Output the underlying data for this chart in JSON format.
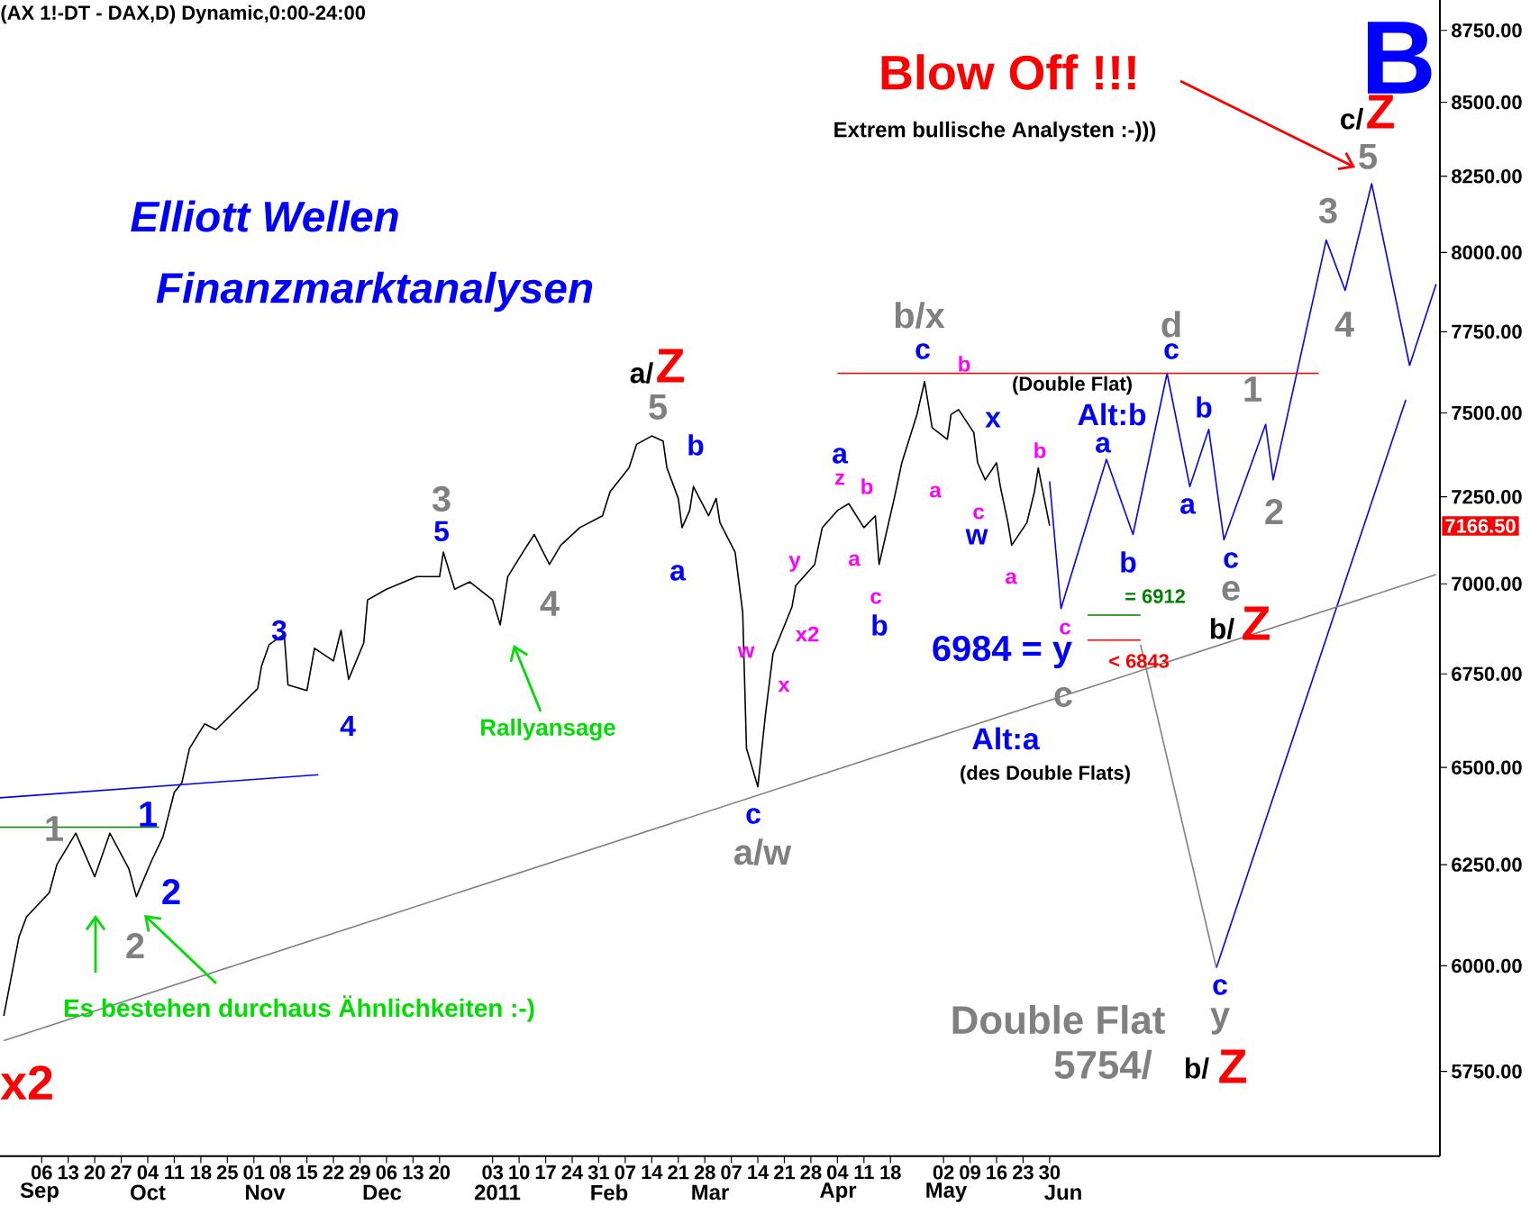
{
  "chart_data": {
    "type": "line",
    "title": "(AX 1!-DT - DAX,D) Dynamic,0:00-24:00",
    "log": true,
    "grid": false,
    "xlim": [
      "2010-08-26",
      "2011-09-10"
    ],
    "ylim": [
      5557,
      8859
    ],
    "xticks": [
      {
        "value": "2010-09-06",
        "label": "06"
      },
      {
        "value": "2010-09-13",
        "label": "13"
      },
      {
        "value": "2010-09-20",
        "label": "20"
      },
      {
        "value": "2010-09-27",
        "label": "27"
      },
      {
        "value": "2010-10-04",
        "label": "04"
      },
      {
        "value": "2010-10-11",
        "label": "11"
      },
      {
        "value": "2010-10-18",
        "label": "18"
      },
      {
        "value": "2010-10-25",
        "label": "25"
      },
      {
        "value": "2010-11-01",
        "label": "01"
      },
      {
        "value": "2010-11-08",
        "label": "08"
      },
      {
        "value": "2010-11-15",
        "label": "15"
      },
      {
        "value": "2010-11-22",
        "label": "22"
      },
      {
        "value": "2010-11-29",
        "label": "29"
      },
      {
        "value": "2010-12-06",
        "label": "06"
      },
      {
        "value": "2010-12-13",
        "label": "13"
      },
      {
        "value": "2010-12-20",
        "label": "20"
      },
      {
        "value": "2011-01-03",
        "label": "03"
      },
      {
        "value": "2011-01-10",
        "label": "10"
      },
      {
        "value": "2011-01-17",
        "label": "17"
      },
      {
        "value": "2011-01-24",
        "label": "24"
      },
      {
        "value": "2011-01-31",
        "label": "31"
      },
      {
        "value": "2011-02-07",
        "label": "07"
      },
      {
        "value": "2011-02-14",
        "label": "14"
      },
      {
        "value": "2011-02-21",
        "label": "21"
      },
      {
        "value": "2011-02-28",
        "label": "28"
      },
      {
        "value": "2011-03-07",
        "label": "07"
      },
      {
        "value": "2011-03-14",
        "label": "14"
      },
      {
        "value": "2011-03-21",
        "label": "21"
      },
      {
        "value": "2011-03-28",
        "label": "28"
      },
      {
        "value": "2011-04-04",
        "label": "04"
      },
      {
        "value": "2011-04-11",
        "label": "11"
      },
      {
        "value": "2011-04-18",
        "label": "18"
      },
      {
        "value": "2011-05-02",
        "label": "02"
      },
      {
        "value": "2011-05-09",
        "label": "09"
      },
      {
        "value": "2011-05-16",
        "label": "16"
      },
      {
        "value": "2011-05-23",
        "label": "23"
      },
      {
        "value": "2011-05-30",
        "label": "30"
      }
    ],
    "yticks": [
      {
        "value": 5750,
        "label": "5750.00"
      },
      {
        "value": 6000,
        "label": "6000.00"
      },
      {
        "value": 6250,
        "label": "6250.00"
      },
      {
        "value": 6500,
        "label": "6500.00"
      },
      {
        "value": 6750,
        "label": "6750.00"
      },
      {
        "value": 7000,
        "label": "7000.00"
      },
      {
        "value": 7250,
        "label": "7250.00"
      },
      {
        "value": 7500,
        "label": "7500.00"
      },
      {
        "value": 7750,
        "label": "7750.00"
      },
      {
        "value": 8000,
        "label": "8000.00"
      },
      {
        "value": 8250,
        "label": "8250.00"
      },
      {
        "value": 8500,
        "label": "8500.00"
      },
      {
        "value": 8750,
        "label": "8750.00"
      }
    ],
    "series": [
      {
        "color": "#000000",
        "x": [
          "2010-08-27",
          "2010-08-31",
          "2010-09-02",
          "2010-09-08",
          "2010-09-10",
          "2010-09-15",
          "2010-09-20",
          "2010-09-24",
          "2010-09-29",
          "2010-10-01",
          "2010-10-05",
          "2010-10-08",
          "2010-10-11",
          "2010-10-13",
          "2010-10-15",
          "2010-10-19",
          "2010-10-22",
          "2010-10-28",
          "2010-11-02",
          "2010-11-03",
          "2010-11-05",
          "2010-11-09",
          "2010-11-10",
          "2010-11-15",
          "2010-11-17",
          "2010-11-22",
          "2010-11-24",
          "2010-11-26",
          "2010-11-30",
          "2010-12-01",
          "2010-12-06",
          "2010-12-14",
          "2010-12-20",
          "2010-12-21",
          "2010-12-24",
          "2010-12-28",
          "2011-01-03",
          "2011-01-05",
          "2011-01-07",
          "2011-01-11",
          "2011-01-14",
          "2011-01-18",
          "2011-01-21",
          "2011-01-26",
          "2011-02-01",
          "2011-02-03",
          "2011-02-08",
          "2011-02-10",
          "2011-02-14",
          "2011-02-17",
          "2011-02-18",
          "2011-02-21",
          "2011-02-22",
          "2011-02-24",
          "2011-02-25",
          "2011-03-01",
          "2011-03-03",
          "2011-03-04",
          "2011-03-08",
          "2011-03-10",
          "2011-03-11",
          "2011-03-14",
          "2011-03-16",
          "2011-03-18",
          "2011-03-23",
          "2011-03-24",
          "2011-03-29",
          "2011-03-31",
          "2011-04-04",
          "2011-04-07",
          "2011-04-11",
          "2011-04-14",
          "2011-04-15",
          "2011-04-19",
          "2011-04-21",
          "2011-04-25",
          "2011-04-27",
          "2011-04-29",
          "2011-05-03",
          "2011-05-04",
          "2011-05-06",
          "2011-05-10",
          "2011-05-11",
          "2011-05-13",
          "2011-05-16",
          "2011-05-17",
          "2011-05-19",
          "2011-05-20",
          "2011-05-24",
          "2011-05-26",
          "2011-05-27",
          "2011-05-30"
        ],
        "values": [
          5880,
          6070,
          6120,
          6180,
          6250,
          6330,
          6220,
          6330,
          6240,
          6170,
          6260,
          6320,
          6435,
          6460,
          6550,
          6615,
          6600,
          6660,
          6710,
          6770,
          6830,
          6860,
          6720,
          6705,
          6820,
          6785,
          6870,
          6735,
          6835,
          6955,
          6985,
          7020,
          7020,
          7090,
          6985,
          7005,
          6955,
          6885,
          7020,
          7090,
          7140,
          7055,
          7110,
          7160,
          7195,
          7265,
          7335,
          7405,
          7430,
          7415,
          7335,
          7245,
          7160,
          7210,
          7280,
          7195,
          7245,
          7175,
          7090,
          6920,
          6550,
          6450,
          6640,
          6805,
          6935,
          6995,
          7055,
          7160,
          7210,
          7230,
          7160,
          7195,
          7055,
          7245,
          7350,
          7495,
          7595,
          7455,
          7420,
          7495,
          7510,
          7440,
          7350,
          7300,
          7350,
          7280,
          7175,
          7110,
          7175,
          7265,
          7335,
          7166.5
        ]
      },
      {
        "color": "#0000ff",
        "x": [
          "2011-05-30",
          "2011-06-02",
          "2011-06-14",
          "2011-06-21",
          "2011-06-30",
          "2011-07-06",
          "2011-07-11",
          "2011-07-15",
          "2011-07-26",
          "2011-07-28",
          "2011-08-11",
          "2011-08-16",
          "2011-08-23",
          "2011-09-02",
          "2011-09-09"
        ],
        "values": [
          7295,
          6930,
          7360,
          7140,
          7620,
          7280,
          7450,
          7125,
          7465,
          7300,
          8040,
          7880,
          8225,
          7645,
          7900
        ]
      },
      {
        "color": "#0000ff",
        "x": [
          "2011-07-13",
          "2011-09-01"
        ],
        "values": [
          5995,
          7540
        ]
      },
      {
        "color": "#808080",
        "x": [
          "2011-06-23",
          "2011-07-13"
        ],
        "values": [
          6830,
          5995
        ]
      },
      {
        "color": "#808080",
        "x": [
          "2010-08-27",
          "2011-09-09"
        ],
        "values": [
          5822,
          7026
        ]
      },
      {
        "color": "#0000ff",
        "x": [
          "2010-08-26",
          "2010-11-18"
        ],
        "values": [
          6421,
          6481
        ]
      },
      {
        "color": "#008000",
        "x": [
          "2010-08-26",
          "2010-10-07"
        ],
        "values": [
          6345,
          6345
        ]
      },
      {
        "color": "#ff0000",
        "x": [
          "2011-04-04",
          "2011-08-09"
        ],
        "values": [
          7620,
          7620
        ]
      },
      {
        "color": "#008000",
        "x": [
          "2011-06-09",
          "2011-06-23"
        ],
        "values": [
          6912,
          6912
        ]
      },
      {
        "color": "#ff0000",
        "x": [
          "2011-06-09",
          "2011-06-23"
        ],
        "values": [
          6843,
          6843
        ]
      }
    ],
    "annotations": [
      "Elliott Wellen",
      "Finanzmarktanalysen",
      "Blow Off !!!",
      "Extrem bullische Analysten :-)))",
      "Es bestehen durchaus Ähnlichkeiten :-)",
      "Rallyansage",
      "(Double Flat)",
      "Alt:b",
      "Alt:a",
      "(des Double Flats)",
      "Double Flat",
      "5754/",
      "7166.50",
      "Sep",
      "Oct",
      "Nov",
      "Dec",
      "2011",
      "Feb",
      "Mar",
      "Apr",
      "May",
      "Jun",
      "1",
      "1",
      "2",
      "2",
      "3",
      "4",
      "3",
      "5",
      "4",
      "a/",
      "Z",
      "5",
      "b",
      "a",
      "w",
      "c",
      "a/w",
      "x",
      "x2",
      "y",
      "a",
      "z",
      "b",
      "a",
      "c",
      "b",
      "b/x",
      "c",
      "b",
      "a",
      "x",
      "c",
      "w",
      "a",
      "b",
      "c",
      "6984 = y",
      "c",
      "a",
      "b",
      "d",
      "c",
      "b",
      "a",
      "1",
      "2",
      "c",
      "e",
      "b/",
      "Z",
      "3",
      "4",
      "5",
      "c/",
      "Z",
      "B",
      "c",
      "y",
      "b/",
      "Z",
      "x2",
      "= 6912",
      "< 6843"
    ]
  }
}
